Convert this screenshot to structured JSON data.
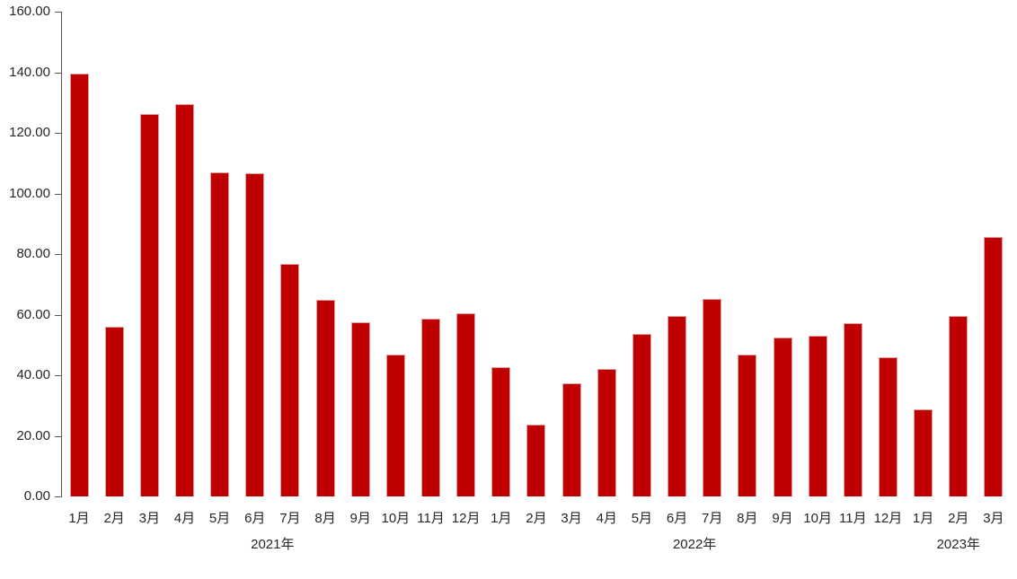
{
  "chart_data": {
    "type": "bar",
    "title": "",
    "xlabel": "",
    "ylabel": "",
    "categories": [
      "1月",
      "2月",
      "3月",
      "4月",
      "5月",
      "6月",
      "7月",
      "8月",
      "9月",
      "10月",
      "11月",
      "12月",
      "1月",
      "2月",
      "3月",
      "4月",
      "5月",
      "6月",
      "7月",
      "8月",
      "9月",
      "10月",
      "11月",
      "12月",
      "1月",
      "2月",
      "3月"
    ],
    "values": [
      139.5,
      56.0,
      126.1,
      129.5,
      107.0,
      106.7,
      76.8,
      64.9,
      57.6,
      46.9,
      58.6,
      60.3,
      42.8,
      23.8,
      37.4,
      42.2,
      53.7,
      59.6,
      65.1,
      46.8,
      52.4,
      53.0,
      57.3,
      46.0,
      28.6,
      59.7,
      85.6
    ],
    "year_groups": [
      {
        "label": "2021年",
        "start": 0,
        "count": 12
      },
      {
        "label": "2022年",
        "start": 12,
        "count": 12
      },
      {
        "label": "2023年",
        "start": 24,
        "count": 3
      }
    ],
    "ylim": [
      0,
      160
    ],
    "ytick_step": 20,
    "ytick_labels": [
      "0.00",
      "20.00",
      "40.00",
      "60.00",
      "80.00",
      "100.00",
      "120.00",
      "140.00",
      "160.00"
    ],
    "grid": false,
    "legend_position": "none",
    "colors": {
      "bar": "#c00000",
      "bar_edge": "#dfa0a0",
      "axis": "#595959",
      "text": "#262626",
      "background": "#ffffff"
    }
  }
}
